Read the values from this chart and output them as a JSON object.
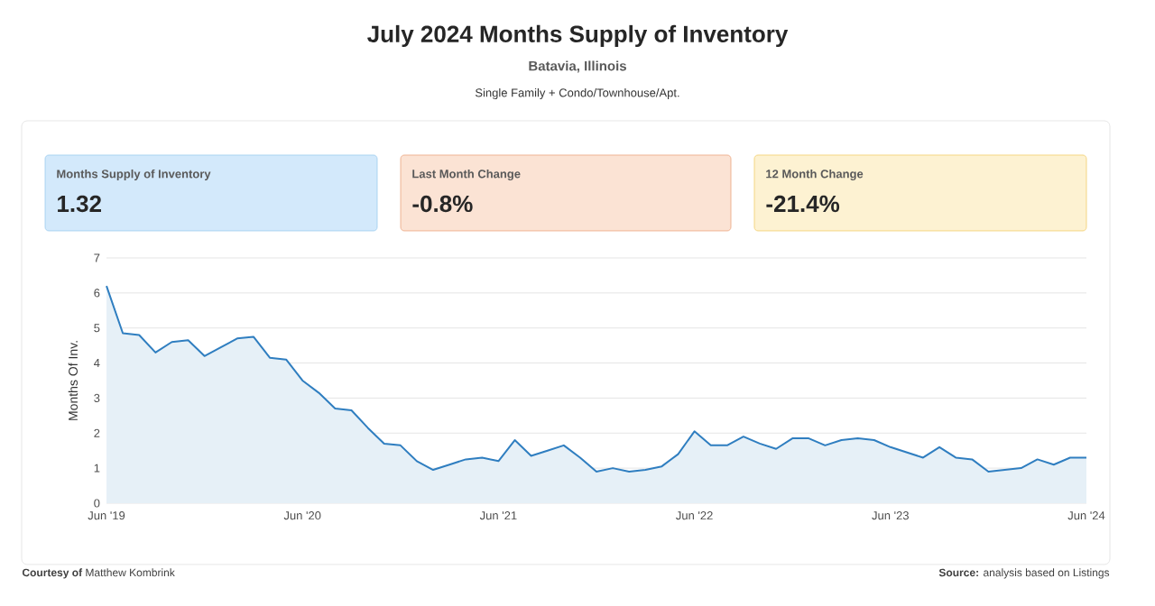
{
  "chart_data": {
    "type": "area",
    "title": "July 2024 Months Supply of Inventory",
    "subtitle": "Batavia, Illinois",
    "ylabel": "Months Of Inv.",
    "x": [
      "2019-06",
      "2019-07",
      "2019-08",
      "2019-09",
      "2019-10",
      "2019-11",
      "2019-12",
      "2020-01",
      "2020-02",
      "2020-03",
      "2020-04",
      "2020-05",
      "2020-06",
      "2020-07",
      "2020-08",
      "2020-09",
      "2020-10",
      "2020-11",
      "2020-12",
      "2021-01",
      "2021-02",
      "2021-03",
      "2021-04",
      "2021-05",
      "2021-06",
      "2021-07",
      "2021-08",
      "2021-09",
      "2021-10",
      "2021-11",
      "2021-12",
      "2022-01",
      "2022-02",
      "2022-03",
      "2022-04",
      "2022-05",
      "2022-06",
      "2022-07",
      "2022-08",
      "2022-09",
      "2022-10",
      "2022-11",
      "2022-12",
      "2023-01",
      "2023-02",
      "2023-03",
      "2023-04",
      "2023-05",
      "2023-06",
      "2023-07",
      "2023-08",
      "2023-09",
      "2023-10",
      "2023-11",
      "2023-12",
      "2024-01",
      "2024-02",
      "2024-03",
      "2024-04",
      "2024-05",
      "2024-06"
    ],
    "values": [
      6.2,
      4.85,
      4.8,
      4.3,
      4.6,
      4.65,
      4.2,
      4.45,
      4.7,
      4.75,
      4.15,
      4.1,
      3.5,
      3.15,
      2.7,
      2.65,
      2.15,
      1.7,
      1.65,
      1.2,
      0.95,
      1.1,
      1.25,
      1.3,
      1.2,
      1.8,
      1.35,
      1.5,
      1.65,
      1.3,
      0.9,
      1.0,
      0.9,
      0.95,
      1.05,
      1.4,
      2.05,
      1.65,
      1.65,
      1.9,
      1.7,
      1.55,
      1.85,
      1.85,
      1.65,
      1.8,
      1.85,
      1.8,
      1.6,
      1.45,
      1.3,
      1.6,
      1.3,
      1.25,
      0.9,
      0.95,
      1.0,
      1.25,
      1.1,
      1.3,
      1.3
    ],
    "color": "#2f7ec0",
    "xlim": [
      "2019-06",
      "2024-06"
    ],
    "xticks": [
      {
        "value": "2019-06",
        "label": "Jun '19"
      },
      {
        "value": "2020-06",
        "label": "Jun '20"
      },
      {
        "value": "2021-06",
        "label": "Jun '21"
      },
      {
        "value": "2022-06",
        "label": "Jun '22"
      },
      {
        "value": "2023-06",
        "label": "Jun '23"
      },
      {
        "value": "2024-06",
        "label": "Jun '24"
      }
    ],
    "ylim": [
      0,
      7
    ],
    "yticks": [
      0,
      1,
      2,
      3,
      4,
      5,
      6,
      7
    ],
    "grid": "y",
    "annotations": [
      "Single Family + Condo/Townhouse/Apt.",
      "Months Supply of Inventory",
      "1.32",
      "Last Month Change",
      "-0.8%",
      "12 Month Change",
      "-21.4%",
      "**Courtesy of** Matthew Kombrink",
      "**Source:** analysis based on Listings"
    ]
  }
}
